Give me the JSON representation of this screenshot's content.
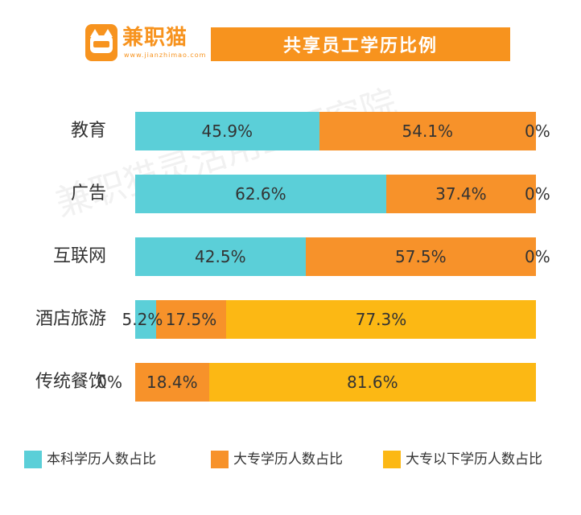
{
  "logo": {
    "name": "兼职猫",
    "url_text": "www.jianzhimao.com",
    "icon_text": "兼职猫",
    "brand_color": "#f7931e"
  },
  "watermark": "兼职猫灵活用工研究院",
  "colors": {
    "bachelor": "#5bcfd8",
    "junior_college": "#f7922a",
    "below": "#fcb814",
    "title_bg": "#f7931e"
  },
  "chart_data": {
    "type": "bar",
    "orientation": "horizontal",
    "stacked": true,
    "title": "共享员工学历比例",
    "categories": [
      "教育",
      "广告",
      "互联网",
      "酒店旅游",
      "传统餐饮"
    ],
    "series": [
      {
        "name": "本科学历人数占比",
        "values": [
          45.9,
          62.6,
          42.5,
          5.2,
          0
        ],
        "labels": [
          "45.9%",
          "62.6%",
          "42.5%",
          "5.2%",
          "0%"
        ]
      },
      {
        "name": "大专学历人数占比",
        "values": [
          54.1,
          37.4,
          57.5,
          17.5,
          18.4
        ],
        "labels": [
          "54.1%",
          "37.4%",
          "57.5%",
          "17.5%",
          "18.4%"
        ]
      },
      {
        "name": "大专以下学历人数占比",
        "values": [
          0,
          0,
          0,
          77.3,
          81.6
        ],
        "labels": [
          "0%",
          "0%",
          "0%",
          "77.3%",
          "81.6%"
        ]
      }
    ],
    "xlim": [
      0,
      100
    ],
    "grid": false,
    "legend": "bottom"
  }
}
